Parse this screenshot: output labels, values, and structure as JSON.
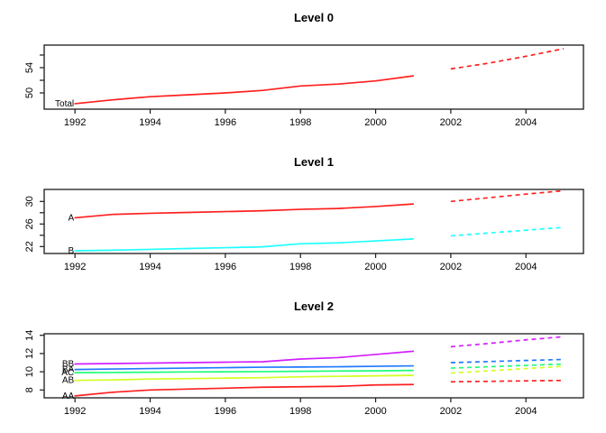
{
  "chart_data": [
    {
      "type": "line",
      "title": "Level 0",
      "xlim": [
        1991.18,
        2005.53
      ],
      "ylim": [
        47.43,
        57.57
      ],
      "xticks": [
        1992,
        1994,
        1996,
        1998,
        2000,
        2002,
        2004
      ],
      "yticks": [
        {
          "value": 50,
          "label": "50"
        },
        {
          "value": 52,
          "label": ""
        },
        {
          "value": 54,
          "label": "54"
        },
        {
          "value": 56,
          "label": ""
        }
      ],
      "x_hist": [
        1992,
        1993,
        1994,
        1995,
        1996,
        1997,
        1998,
        1999,
        2000,
        2001
      ],
      "x_forecast": [
        2002,
        2003,
        2004,
        2005
      ],
      "forecast_linetype": "dashed",
      "series": [
        {
          "name": "Total",
          "label": "Total",
          "color": "#FF0000",
          "history": [
            48.3,
            48.9,
            49.4,
            49.7,
            50.0,
            50.4,
            51.1,
            51.4,
            51.9,
            52.7
          ],
          "forecast": [
            53.8,
            54.7,
            55.8,
            57.0
          ]
        }
      ]
    },
    {
      "type": "line",
      "title": "Level 1",
      "xlim": [
        1991.18,
        2005.53
      ],
      "ylim": [
        20.77,
        32.13
      ],
      "xticks": [
        1992,
        1994,
        1996,
        1998,
        2000,
        2002,
        2004
      ],
      "yticks": [
        {
          "value": 22,
          "label": "22"
        },
        {
          "value": 24,
          "label": ""
        },
        {
          "value": 26,
          "label": "26"
        },
        {
          "value": 28,
          "label": ""
        },
        {
          "value": 30,
          "label": "30"
        }
      ],
      "x_hist": [
        1992,
        1993,
        1994,
        1995,
        1996,
        1997,
        1998,
        1999,
        2000,
        2001
      ],
      "x_forecast": [
        2002,
        2003,
        2004,
        2005
      ],
      "forecast_linetype": "dashed",
      "series": [
        {
          "name": "A",
          "label": "A",
          "color": "#FF0000",
          "history": [
            27.1,
            27.7,
            27.9,
            28.05,
            28.2,
            28.35,
            28.6,
            28.75,
            29.1,
            29.55
          ],
          "forecast": [
            30.0,
            30.65,
            31.3,
            31.9
          ]
        },
        {
          "name": "B",
          "label": "B",
          "color": "#00FFFF",
          "history": [
            21.25,
            21.35,
            21.5,
            21.65,
            21.8,
            21.95,
            22.5,
            22.65,
            23.0,
            23.35
          ],
          "forecast": [
            23.9,
            24.4,
            24.9,
            25.4
          ]
        }
      ]
    },
    {
      "type": "line",
      "title": "Level 2",
      "xlim": [
        1991.18,
        2005.53
      ],
      "ylim": [
        7.14,
        14.17
      ],
      "xticks": [
        1992,
        1994,
        1996,
        1998,
        2000,
        2002,
        2004
      ],
      "yticks": [
        {
          "value": 8,
          "label": "8"
        },
        {
          "value": 10,
          "label": "10"
        },
        {
          "value": 12,
          "label": "12"
        },
        {
          "value": 14,
          "label": "14"
        }
      ],
      "x_hist": [
        1992,
        1993,
        1994,
        1995,
        1996,
        1997,
        1998,
        1999,
        2000,
        2001
      ],
      "x_forecast": [
        2002,
        2003,
        2004,
        2005
      ],
      "forecast_linetype": "dashed",
      "series": [
        {
          "name": "AA",
          "label": "AA",
          "color": "#FF0000",
          "history": [
            7.35,
            7.75,
            8.0,
            8.1,
            8.2,
            8.3,
            8.35,
            8.4,
            8.55,
            8.6
          ],
          "forecast": [
            8.9,
            8.95,
            9.0,
            9.05
          ]
        },
        {
          "name": "AB",
          "label": "AB",
          "color": "#CCFF00",
          "history": [
            9.05,
            9.1,
            9.2,
            9.25,
            9.3,
            9.35,
            9.45,
            9.5,
            9.55,
            9.6
          ],
          "forecast": [
            9.85,
            10.1,
            10.35,
            10.6
          ]
        },
        {
          "name": "AC",
          "label": "AC",
          "color": "#00FF66",
          "history": [
            9.9,
            9.92,
            9.95,
            9.98,
            10.0,
            10.02,
            10.05,
            10.08,
            10.1,
            10.15
          ],
          "forecast": [
            10.4,
            10.55,
            10.7,
            10.85
          ]
        },
        {
          "name": "BA",
          "label": "BA",
          "color": "#0066FF",
          "history": [
            10.25,
            10.3,
            10.35,
            10.4,
            10.45,
            10.5,
            10.52,
            10.55,
            10.6,
            10.65
          ],
          "forecast": [
            11.0,
            11.12,
            11.24,
            11.35
          ]
        },
        {
          "name": "BB",
          "label": "BB",
          "color": "#CC00FF",
          "history": [
            10.85,
            10.9,
            10.95,
            11.0,
            11.05,
            11.1,
            11.4,
            11.55,
            11.9,
            12.25
          ],
          "forecast": [
            12.75,
            13.1,
            13.5,
            13.85
          ]
        }
      ]
    }
  ]
}
